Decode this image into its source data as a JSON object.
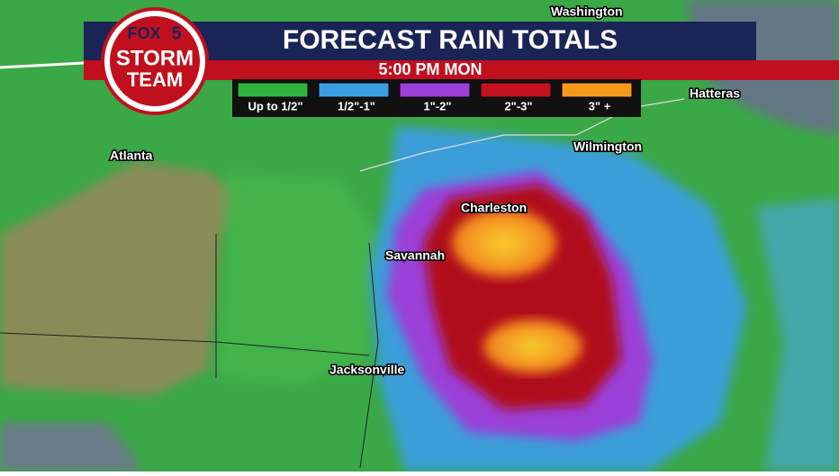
{
  "header": {
    "title": "FORECAST RAIN TOTALS",
    "subtitle": "5:00 PM MON"
  },
  "logo": {
    "network": "FOX",
    "channel": "5",
    "line1": "STORM",
    "line2": "TEAM"
  },
  "legend": {
    "items": [
      {
        "label": "Up to 1/2\"",
        "color": "#2fb53c"
      },
      {
        "label": "1/2\"-1\"",
        "color": "#3a9fe0"
      },
      {
        "label": "1\"-2\"",
        "color": "#9b3fd8"
      },
      {
        "label": "2\"-3\"",
        "color": "#c3121c"
      },
      {
        "label": "3\" +",
        "color": "#f59a1c"
      }
    ]
  },
  "cities": [
    {
      "label": "Washington"
    },
    {
      "label": "Hatteras"
    },
    {
      "label": "Wilmington"
    },
    {
      "label": "Atlanta"
    },
    {
      "label": "Charleston"
    },
    {
      "label": "Savannah"
    },
    {
      "label": "Jacksonville"
    }
  ]
}
